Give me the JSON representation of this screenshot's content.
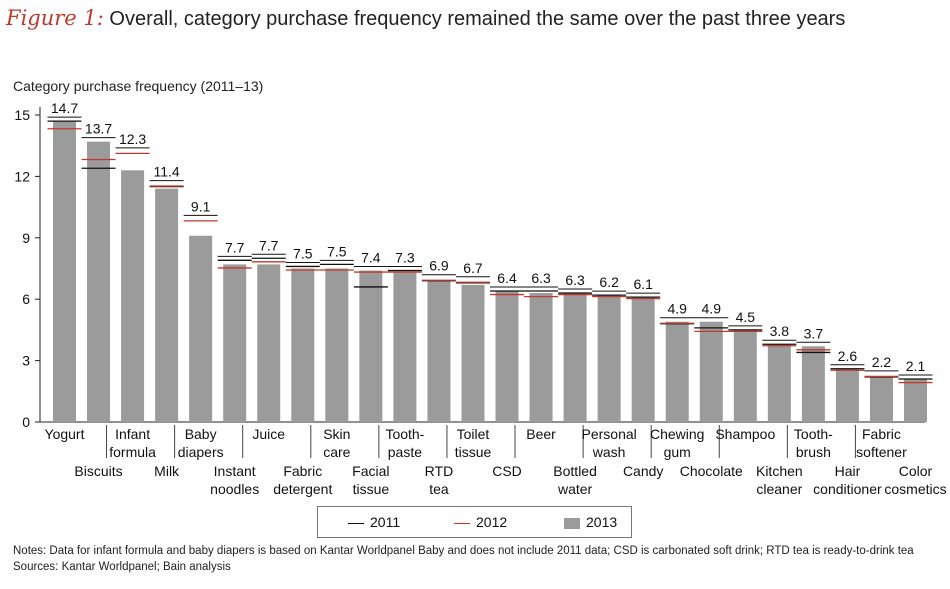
{
  "figure": {
    "label": "Figure 1:",
    "title": "Overall, category purchase frequency remained the same over the past three years"
  },
  "colors": {
    "bar": "#9b9b9b",
    "line2011": "#111111",
    "line2012": "#c0392b",
    "axis": "#222222"
  },
  "notes": {
    "line1": "Notes: Data for infant formula and baby diapers is based on Kantar Worldpanel Baby and does not include 2011 data; CSD is carbonated soft drink; RTD tea is ready-to-drink tea",
    "line2": "Sources: Kantar Worldpanel; Bain analysis"
  },
  "legend": {
    "item2011": "2011",
    "item2012": "2012",
    "item2013": "2013"
  },
  "chart_data": {
    "type": "bar",
    "ylabel": "Category purchase frequency (2011–13)",
    "ylim": [
      0,
      15
    ],
    "yticks": [
      0,
      3,
      6,
      9,
      12,
      15
    ],
    "categories": [
      [
        "Yogurt"
      ],
      [
        "Biscuits"
      ],
      [
        "Infant",
        "formula"
      ],
      [
        "Milk"
      ],
      [
        "Baby",
        "diapers"
      ],
      [
        "Instant",
        "noodles"
      ],
      [
        "Juice"
      ],
      [
        "Fabric",
        "detergent"
      ],
      [
        "Skin",
        "care"
      ],
      [
        "Facial",
        "tissue"
      ],
      [
        "Tooth-",
        "paste"
      ],
      [
        "RTD",
        "tea"
      ],
      [
        "Toilet",
        "tissue"
      ],
      [
        "CSD"
      ],
      [
        "Beer"
      ],
      [
        "Bottled",
        "water"
      ],
      [
        "Personal",
        "wash"
      ],
      [
        "Candy"
      ],
      [
        "Chewing",
        "gum"
      ],
      [
        "Chocolate"
      ],
      [
        "Shampoo"
      ],
      [
        "Kitchen",
        "cleaner"
      ],
      [
        "Tooth-",
        "brush"
      ],
      [
        "Hair",
        "conditioner"
      ],
      [
        "Fabric",
        "softener"
      ],
      [
        "Color",
        "cosmetics"
      ]
    ],
    "series": [
      {
        "name": "2011",
        "style": "line",
        "values": [
          14.7,
          12.4,
          null,
          11.5,
          null,
          7.9,
          8.0,
          7.6,
          7.7,
          6.6,
          7.4,
          6.9,
          6.8,
          6.4,
          6.4,
          6.3,
          6.2,
          6.1,
          4.8,
          4.6,
          4.5,
          3.8,
          3.4,
          2.6,
          2.2,
          2.1
        ]
      },
      {
        "name": "2012",
        "style": "line",
        "values": [
          14.4,
          12.9,
          13.2,
          11.6,
          9.9,
          7.6,
          7.9,
          7.5,
          7.5,
          7.4,
          7.4,
          7.0,
          6.9,
          6.3,
          6.2,
          6.3,
          6.2,
          6.1,
          4.9,
          4.5,
          4.5,
          3.8,
          3.6,
          2.6,
          2.3,
          2.0
        ]
      },
      {
        "name": "2013",
        "style": "bar",
        "values": [
          14.7,
          13.7,
          12.3,
          11.4,
          9.1,
          7.7,
          7.7,
          7.5,
          7.5,
          7.4,
          7.3,
          6.9,
          6.7,
          6.4,
          6.3,
          6.3,
          6.2,
          6.1,
          4.9,
          4.9,
          4.5,
          3.8,
          3.7,
          2.6,
          2.2,
          2.1
        ]
      }
    ],
    "data_labels": [
      "14.7",
      "13.7",
      "12.3",
      "11.4",
      "9.1",
      "7.7",
      "7.7",
      "7.5",
      "7.5",
      "7.4",
      "7.3",
      "6.9",
      "6.7",
      "6.4",
      "6.3",
      "6.3",
      "6.2",
      "6.1",
      "4.9",
      "4.9",
      "4.5",
      "3.8",
      "3.7",
      "2.6",
      "2.2",
      "2.1"
    ],
    "grid": false,
    "legend_position": "bottom-center"
  }
}
